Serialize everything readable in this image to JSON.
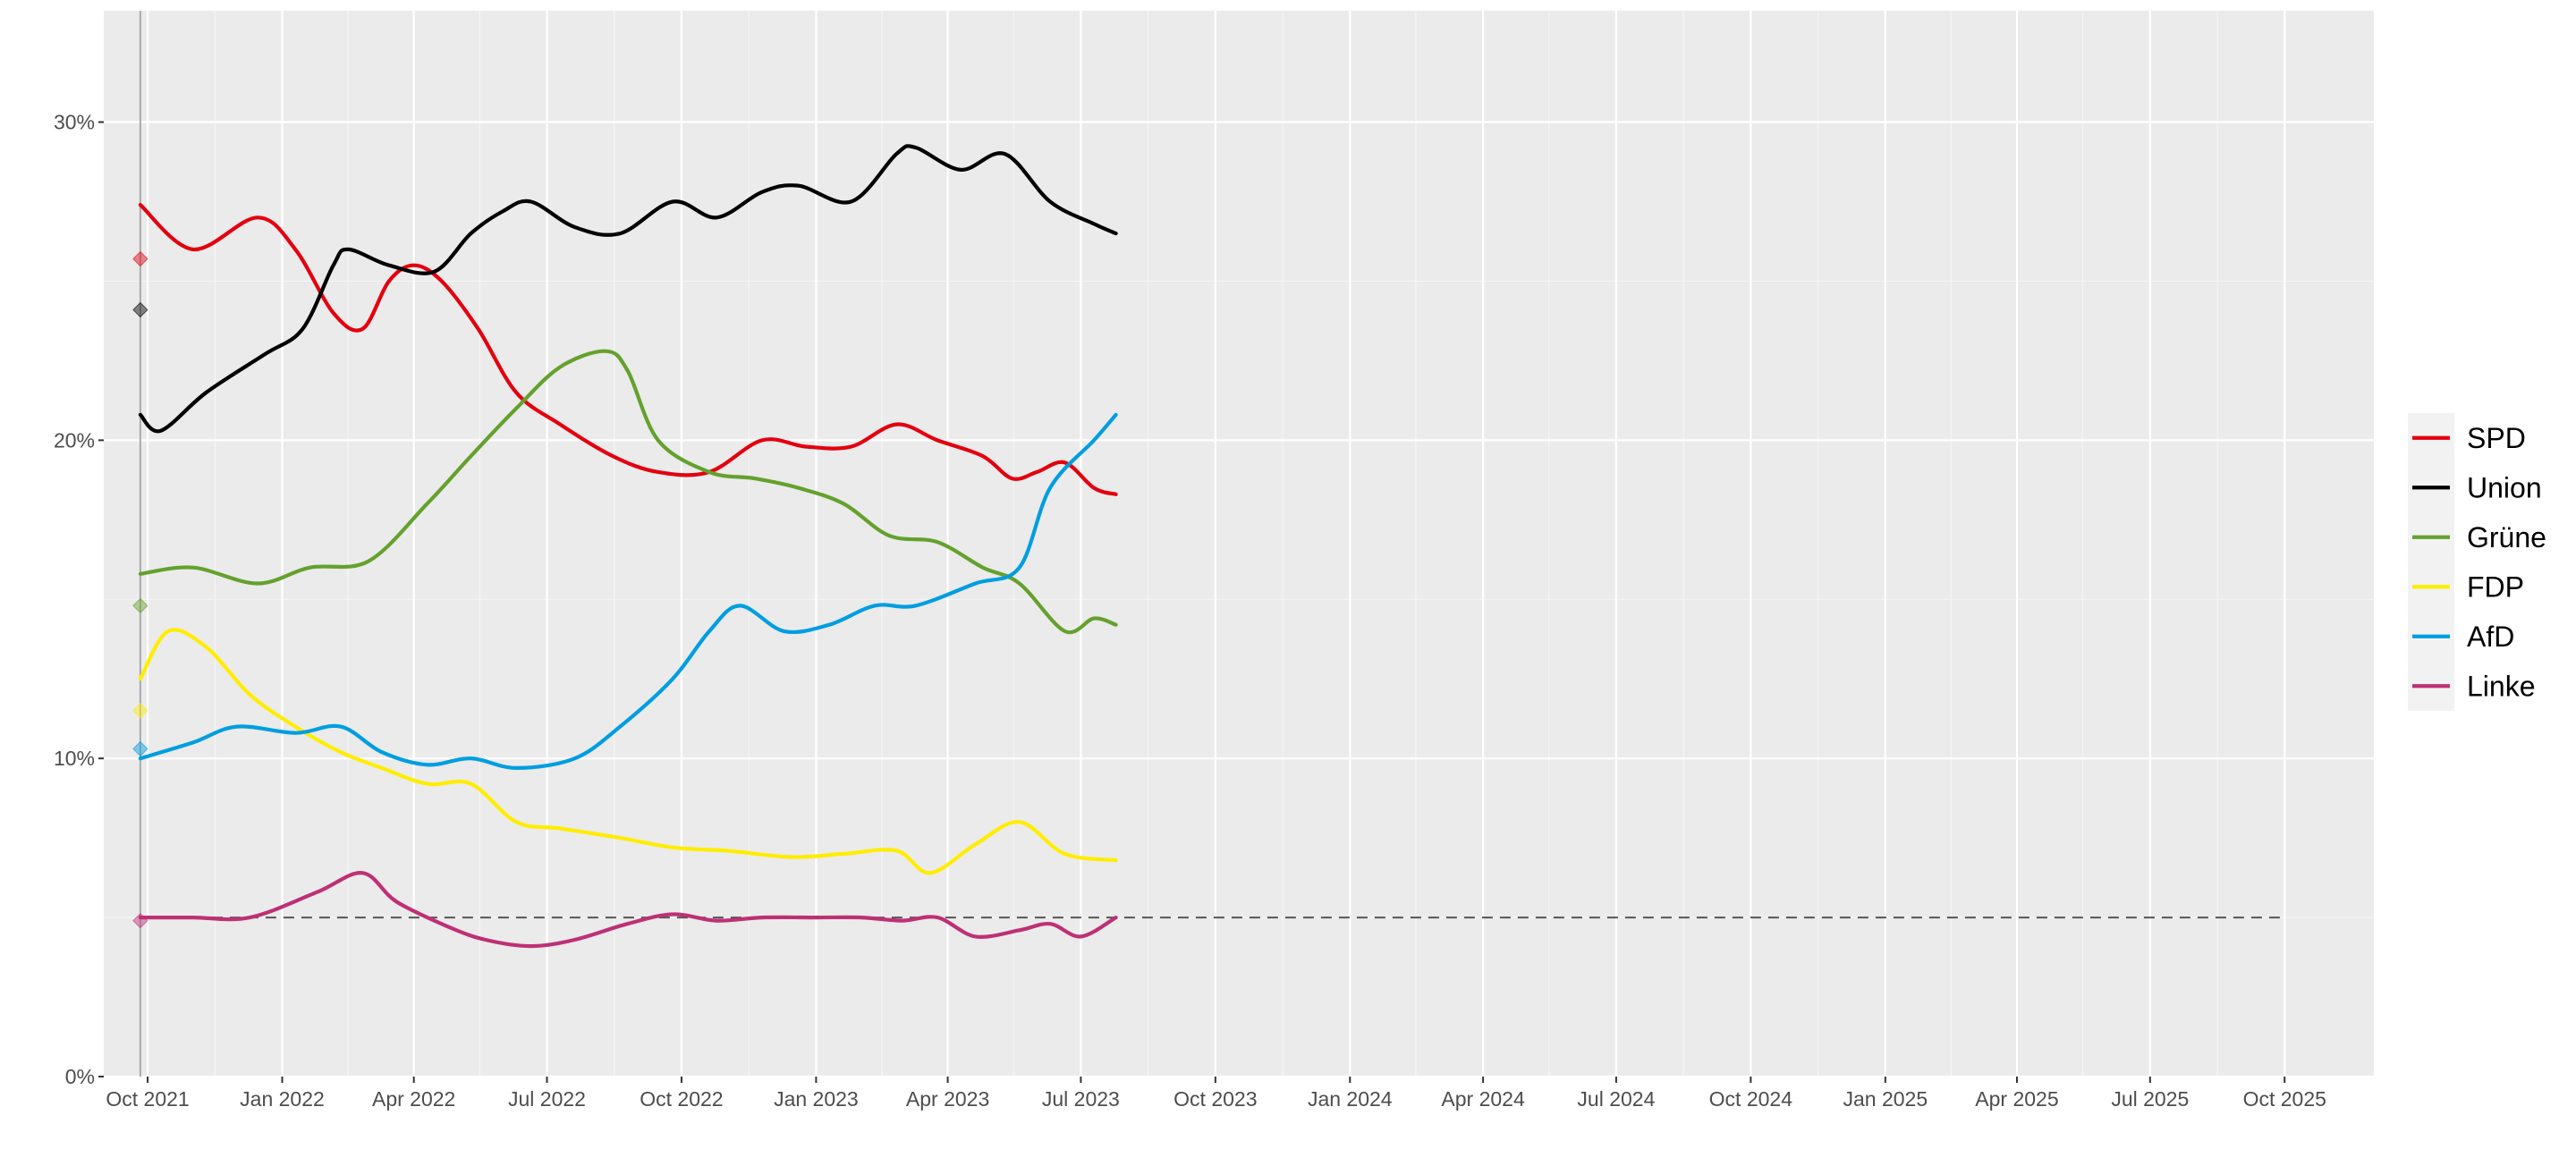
{
  "chart_data": {
    "type": "line",
    "title": "",
    "xlabel": "",
    "ylabel": "",
    "x_range": [
      "2021-09-01",
      "2025-12-01"
    ],
    "ylim": [
      0,
      33.5
    ],
    "y_ticks": [
      0,
      10,
      20,
      30
    ],
    "y_tick_labels": [
      "0%",
      "10%",
      "20%",
      "30%"
    ],
    "x_ticks": [
      "2021-10-01",
      "2022-01-01",
      "2022-04-01",
      "2022-07-01",
      "2022-10-01",
      "2023-01-01",
      "2023-04-01",
      "2023-07-01",
      "2023-10-01",
      "2024-01-01",
      "2024-04-01",
      "2024-07-01",
      "2024-10-01",
      "2025-01-01",
      "2025-04-01",
      "2025-07-01",
      "2025-10-01"
    ],
    "x_tick_labels": [
      "Oct 2021",
      "Jan 2022",
      "Apr 2022",
      "Jul 2022",
      "Oct 2022",
      "Jan 2023",
      "Apr 2023",
      "Jul 2023",
      "Oct 2023",
      "Jan 2024",
      "Apr 2024",
      "Jul 2024",
      "Oct 2024",
      "Jan 2025",
      "Apr 2025",
      "Jul 2025",
      "Oct 2025"
    ],
    "grid": true,
    "legend_position": "right",
    "election_date": "2021-09-26",
    "threshold": {
      "y": 5,
      "x_start": "2021-09-26",
      "x_end": "2025-10-01",
      "style": "dashed"
    },
    "series": [
      {
        "name": "SPD",
        "color": "#E3000F",
        "election_result": 25.7,
        "points": [
          [
            "2021-09-26",
            27.4
          ],
          [
            "2021-11-01",
            26
          ],
          [
            "2021-12-15",
            27
          ],
          [
            "2022-01-10",
            26
          ],
          [
            "2022-02-05",
            24
          ],
          [
            "2022-02-25",
            23.5
          ],
          [
            "2022-03-15",
            25
          ],
          [
            "2022-04-01",
            25.5
          ],
          [
            "2022-04-20",
            25
          ],
          [
            "2022-05-15",
            23.5
          ],
          [
            "2022-06-10",
            21.5
          ],
          [
            "2022-07-10",
            20.5
          ],
          [
            "2022-08-15",
            19.5
          ],
          [
            "2022-09-15",
            19
          ],
          [
            "2022-10-20",
            19
          ],
          [
            "2022-11-25",
            20
          ],
          [
            "2022-12-25",
            19.8
          ],
          [
            "2023-01-25",
            19.8
          ],
          [
            "2023-02-25",
            20.5
          ],
          [
            "2023-03-25",
            20
          ],
          [
            "2023-04-25",
            19.5
          ],
          [
            "2023-05-15",
            18.8
          ],
          [
            "2023-06-01",
            19
          ],
          [
            "2023-06-20",
            19.3
          ],
          [
            "2023-07-10",
            18.5
          ],
          [
            "2023-07-25",
            18.3
          ]
        ]
      },
      {
        "name": "Union",
        "color": "#000000",
        "election_result": 24.1,
        "points": [
          [
            "2021-09-26",
            20.8
          ],
          [
            "2021-10-10",
            20.3
          ],
          [
            "2021-11-10",
            21.5
          ],
          [
            "2021-12-20",
            22.7
          ],
          [
            "2022-01-15",
            23.5
          ],
          [
            "2022-02-05",
            25.5
          ],
          [
            "2022-02-15",
            26
          ],
          [
            "2022-03-15",
            25.5
          ],
          [
            "2022-04-15",
            25.3
          ],
          [
            "2022-05-10",
            26.5
          ],
          [
            "2022-06-01",
            27.2
          ],
          [
            "2022-06-20",
            27.5
          ],
          [
            "2022-07-20",
            26.7
          ],
          [
            "2022-08-20",
            26.5
          ],
          [
            "2022-09-25",
            27.5
          ],
          [
            "2022-10-25",
            27
          ],
          [
            "2022-11-25",
            27.8
          ],
          [
            "2022-12-20",
            28
          ],
          [
            "2023-01-25",
            27.5
          ],
          [
            "2023-02-25",
            29
          ],
          [
            "2023-03-10",
            29.2
          ],
          [
            "2023-04-10",
            28.5
          ],
          [
            "2023-05-10",
            29
          ],
          [
            "2023-06-10",
            27.5
          ],
          [
            "2023-07-10",
            26.8
          ],
          [
            "2023-07-25",
            26.5
          ]
        ]
      },
      {
        "name": "Grüne",
        "color": "#64A12D",
        "election_result": 14.8,
        "points": [
          [
            "2021-09-26",
            15.8
          ],
          [
            "2021-11-01",
            16
          ],
          [
            "2021-12-15",
            15.5
          ],
          [
            "2022-01-20",
            16
          ],
          [
            "2022-03-01",
            16.2
          ],
          [
            "2022-04-10",
            18
          ],
          [
            "2022-05-10",
            19.5
          ],
          [
            "2022-06-10",
            21
          ],
          [
            "2022-07-10",
            22.3
          ],
          [
            "2022-08-10",
            22.8
          ],
          [
            "2022-08-25",
            22.2
          ],
          [
            "2022-09-15",
            20
          ],
          [
            "2022-10-20",
            19
          ],
          [
            "2022-11-20",
            18.8
          ],
          [
            "2022-12-20",
            18.5
          ],
          [
            "2023-01-20",
            18
          ],
          [
            "2023-02-20",
            17
          ],
          [
            "2023-03-25",
            16.8
          ],
          [
            "2023-04-25",
            16
          ],
          [
            "2023-05-20",
            15.5
          ],
          [
            "2023-06-20",
            14
          ],
          [
            "2023-07-10",
            14.4
          ],
          [
            "2023-07-25",
            14.2
          ]
        ]
      },
      {
        "name": "FDP",
        "color": "#FFED00",
        "election_result": 11.5,
        "points": [
          [
            "2021-09-26",
            12.5
          ],
          [
            "2021-10-15",
            14
          ],
          [
            "2021-11-10",
            13.5
          ],
          [
            "2021-12-10",
            12
          ],
          [
            "2022-01-10",
            11
          ],
          [
            "2022-02-10",
            10.2
          ],
          [
            "2022-03-10",
            9.7
          ],
          [
            "2022-04-10",
            9.2
          ],
          [
            "2022-05-10",
            9.2
          ],
          [
            "2022-06-10",
            8
          ],
          [
            "2022-07-10",
            7.8
          ],
          [
            "2022-08-20",
            7.5
          ],
          [
            "2022-09-25",
            7.2
          ],
          [
            "2022-11-01",
            7.1
          ],
          [
            "2022-12-15",
            6.9
          ],
          [
            "2023-01-20",
            7
          ],
          [
            "2023-02-25",
            7.1
          ],
          [
            "2023-03-20",
            6.4
          ],
          [
            "2023-04-20",
            7.3
          ],
          [
            "2023-05-20",
            8
          ],
          [
            "2023-06-20",
            7
          ],
          [
            "2023-07-25",
            6.8
          ]
        ]
      },
      {
        "name": "AfD",
        "color": "#009EE0",
        "election_result": 10.3,
        "points": [
          [
            "2021-09-26",
            10
          ],
          [
            "2021-11-01",
            10.5
          ],
          [
            "2021-12-01",
            11
          ],
          [
            "2022-01-10",
            10.8
          ],
          [
            "2022-02-10",
            11
          ],
          [
            "2022-03-10",
            10.2
          ],
          [
            "2022-04-10",
            9.8
          ],
          [
            "2022-05-10",
            10
          ],
          [
            "2022-06-10",
            9.7
          ],
          [
            "2022-07-20",
            10
          ],
          [
            "2022-08-20",
            11
          ],
          [
            "2022-09-25",
            12.5
          ],
          [
            "2022-10-20",
            14
          ],
          [
            "2022-11-10",
            14.8
          ],
          [
            "2022-12-10",
            14
          ],
          [
            "2023-01-10",
            14.2
          ],
          [
            "2023-02-10",
            14.8
          ],
          [
            "2023-03-10",
            14.8
          ],
          [
            "2023-04-20",
            15.5
          ],
          [
            "2023-05-20",
            16
          ],
          [
            "2023-06-10",
            18.5
          ],
          [
            "2023-07-10",
            20
          ],
          [
            "2023-07-25",
            20.8
          ]
        ]
      },
      {
        "name": "Linke",
        "color": "#BE3075",
        "election_result": 4.9,
        "points": [
          [
            "2021-09-26",
            5
          ],
          [
            "2021-11-01",
            5
          ],
          [
            "2021-12-10",
            5
          ],
          [
            "2022-01-25",
            5.8
          ],
          [
            "2022-02-25",
            6.4
          ],
          [
            "2022-03-20",
            5.5
          ],
          [
            "2022-04-25",
            4.7
          ],
          [
            "2022-05-20",
            4.3
          ],
          [
            "2022-06-20",
            4.1
          ],
          [
            "2022-07-20",
            4.3
          ],
          [
            "2022-08-25",
            4.8
          ],
          [
            "2022-09-25",
            5.1
          ],
          [
            "2022-10-25",
            4.9
          ],
          [
            "2022-11-25",
            5
          ],
          [
            "2023-01-01",
            5
          ],
          [
            "2023-02-01",
            5
          ],
          [
            "2023-03-01",
            4.9
          ],
          [
            "2023-03-25",
            5
          ],
          [
            "2023-04-20",
            4.4
          ],
          [
            "2023-05-20",
            4.6
          ],
          [
            "2023-06-10",
            4.8
          ],
          [
            "2023-07-01",
            4.4
          ],
          [
            "2023-07-25",
            5
          ]
        ]
      }
    ]
  }
}
